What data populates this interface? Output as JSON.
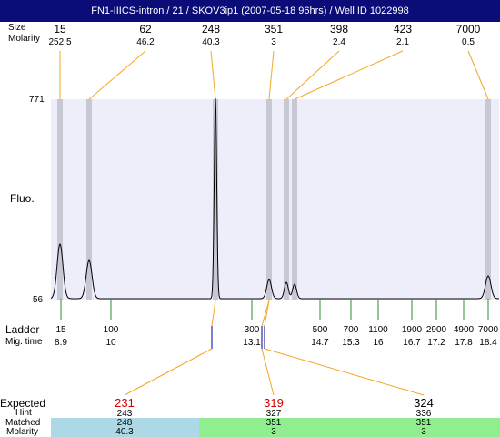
{
  "window": {
    "title": "FN1-IIICS-intron / 21 / SKOV3ip1 (2007-05-18 96hrs) / Well ID 1022998"
  },
  "labels": {
    "peaks_size": "Size",
    "peaks_molarity": "Molarity",
    "fluo": "Fluo.",
    "ladder": "Ladder",
    "mig_time": "Mig. time",
    "expected": "Expected",
    "hint": "Hint",
    "matched": "Matched",
    "molarity": "Molarity"
  },
  "colors": {
    "title_bg": "#0c0c78",
    "plot_bg": "#eeeefa",
    "peak_marker": "#c8c8d4",
    "callout_line": "#f5a623",
    "trace": "#000000",
    "ladder_tick": "#2e8b2e",
    "mig_tick": "#00008b",
    "expected_red": "#d40000",
    "matched_blue": "#add8e6",
    "matched_green": "#90ee90"
  },
  "chart_data": {
    "type": "line",
    "ylabel": "Fluo.",
    "ylim": [
      56,
      771
    ],
    "y_ticks": [
      "771",
      "56"
    ],
    "peaks": [
      {
        "size": "15",
        "molarity": "252.5"
      },
      {
        "size": "62",
        "molarity": "46.2"
      },
      {
        "size": "248",
        "molarity": "40.3"
      },
      {
        "size": "351",
        "molarity": "3"
      },
      {
        "size": "398",
        "molarity": "2.4"
      },
      {
        "size": "423",
        "molarity": "2.1"
      },
      {
        "size": "7000",
        "molarity": "0.5"
      }
    ],
    "ladder": [
      {
        "size": "15",
        "mig_time": "8.9"
      },
      {
        "size": "100",
        "mig_time": "10"
      },
      {
        "size": "300",
        "mig_time": "13.1"
      },
      {
        "size": "500",
        "mig_time": "14.7"
      },
      {
        "size": "700",
        "mig_time": "15.3"
      },
      {
        "size": "1100",
        "mig_time": "16"
      },
      {
        "size": "1900",
        "mig_time": "16.7"
      },
      {
        "size": "2900",
        "mig_time": "17.2"
      },
      {
        "size": "4900",
        "mig_time": "17.8"
      },
      {
        "size": "7000",
        "mig_time": "18.4"
      }
    ],
    "expected": [
      {
        "expected": "231",
        "hint": "243",
        "matched": "248",
        "molarity": "40.3"
      },
      {
        "expected": "319",
        "hint": "327",
        "matched": "351",
        "molarity": "3"
      },
      {
        "expected": "324",
        "hint": "336",
        "matched": "351",
        "molarity": "3"
      }
    ]
  }
}
